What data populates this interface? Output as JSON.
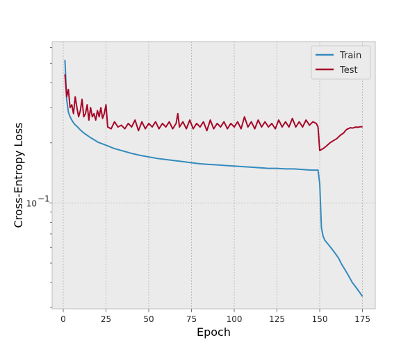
{
  "chart_data": {
    "type": "line",
    "title": "",
    "xlabel": "Epoch",
    "ylabel": "Cross-Entropy Loss",
    "yscale": "log",
    "xlim": [
      -6.5,
      182.5
    ],
    "ylim": [
      0.0295,
      0.642
    ],
    "xticks": [
      0,
      25,
      50,
      75,
      100,
      125,
      150,
      175
    ],
    "yticks": [
      {
        "value": 0.1,
        "label": "10",
        "exp": "−1"
      }
    ],
    "grid": true,
    "legend_position": "top-right",
    "background": "#ebebeb",
    "series": [
      {
        "name": "Train",
        "color": "#348abd",
        "points": [
          [
            1,
            0.52
          ],
          [
            2,
            0.33
          ],
          [
            3,
            0.285
          ],
          [
            4,
            0.27
          ],
          [
            5,
            0.26
          ],
          [
            6,
            0.252
          ],
          [
            7,
            0.246
          ],
          [
            8,
            0.242
          ],
          [
            9,
            0.237
          ],
          [
            10,
            0.232
          ],
          [
            11,
            0.228
          ],
          [
            12,
            0.224
          ],
          [
            13,
            0.221
          ],
          [
            14,
            0.218
          ],
          [
            15,
            0.215
          ],
          [
            16,
            0.212
          ],
          [
            17,
            0.21
          ],
          [
            18,
            0.207
          ],
          [
            19,
            0.205
          ],
          [
            20,
            0.202
          ],
          [
            22,
            0.199
          ],
          [
            24,
            0.196
          ],
          [
            26,
            0.193
          ],
          [
            28,
            0.19
          ],
          [
            30,
            0.187
          ],
          [
            33,
            0.184
          ],
          [
            36,
            0.181
          ],
          [
            40,
            0.177
          ],
          [
            45,
            0.173
          ],
          [
            50,
            0.17
          ],
          [
            55,
            0.167
          ],
          [
            60,
            0.165
          ],
          [
            65,
            0.163
          ],
          [
            70,
            0.161
          ],
          [
            75,
            0.159
          ],
          [
            80,
            0.157
          ],
          [
            85,
            0.156
          ],
          [
            90,
            0.155
          ],
          [
            95,
            0.154
          ],
          [
            100,
            0.153
          ],
          [
            105,
            0.152
          ],
          [
            110,
            0.151
          ],
          [
            115,
            0.15
          ],
          [
            120,
            0.149
          ],
          [
            125,
            0.149
          ],
          [
            130,
            0.148
          ],
          [
            135,
            0.148
          ],
          [
            140,
            0.147
          ],
          [
            145,
            0.146
          ],
          [
            149,
            0.146
          ],
          [
            150,
            0.125
          ],
          [
            151,
            0.075
          ],
          [
            152,
            0.068
          ],
          [
            153,
            0.065
          ],
          [
            155,
            0.062
          ],
          [
            157,
            0.059
          ],
          [
            159,
            0.056
          ],
          [
            161,
            0.053
          ],
          [
            163,
            0.049
          ],
          [
            165,
            0.046
          ],
          [
            167,
            0.043
          ],
          [
            169,
            0.04
          ],
          [
            171,
            0.038
          ],
          [
            173,
            0.036
          ],
          [
            175,
            0.034
          ]
        ]
      },
      {
        "name": "Test",
        "color": "#a60628",
        "points": [
          [
            1,
            0.44
          ],
          [
            2,
            0.34
          ],
          [
            3,
            0.37
          ],
          [
            4,
            0.3
          ],
          [
            5,
            0.31
          ],
          [
            6,
            0.28
          ],
          [
            7,
            0.34
          ],
          [
            8,
            0.3
          ],
          [
            9,
            0.27
          ],
          [
            10,
            0.29
          ],
          [
            11,
            0.33
          ],
          [
            12,
            0.27
          ],
          [
            13,
            0.28
          ],
          [
            14,
            0.31
          ],
          [
            15,
            0.26
          ],
          [
            16,
            0.3
          ],
          [
            17,
            0.27
          ],
          [
            18,
            0.28
          ],
          [
            19,
            0.26
          ],
          [
            20,
            0.29
          ],
          [
            21,
            0.27
          ],
          [
            22,
            0.3
          ],
          [
            23,
            0.265
          ],
          [
            24,
            0.28
          ],
          [
            25,
            0.31
          ],
          [
            26,
            0.24
          ],
          [
            28,
            0.235
          ],
          [
            30,
            0.255
          ],
          [
            32,
            0.24
          ],
          [
            34,
            0.245
          ],
          [
            36,
            0.235
          ],
          [
            38,
            0.25
          ],
          [
            40,
            0.24
          ],
          [
            42,
            0.26
          ],
          [
            44,
            0.23
          ],
          [
            46,
            0.255
          ],
          [
            48,
            0.235
          ],
          [
            50,
            0.25
          ],
          [
            52,
            0.24
          ],
          [
            54,
            0.255
          ],
          [
            56,
            0.235
          ],
          [
            58,
            0.25
          ],
          [
            60,
            0.24
          ],
          [
            62,
            0.255
          ],
          [
            64,
            0.235
          ],
          [
            66,
            0.25
          ],
          [
            67,
            0.28
          ],
          [
            68,
            0.24
          ],
          [
            70,
            0.255
          ],
          [
            72,
            0.235
          ],
          [
            74,
            0.26
          ],
          [
            76,
            0.235
          ],
          [
            78,
            0.25
          ],
          [
            80,
            0.24
          ],
          [
            82,
            0.255
          ],
          [
            84,
            0.23
          ],
          [
            86,
            0.26
          ],
          [
            88,
            0.235
          ],
          [
            90,
            0.25
          ],
          [
            92,
            0.24
          ],
          [
            94,
            0.255
          ],
          [
            96,
            0.235
          ],
          [
            98,
            0.25
          ],
          [
            100,
            0.24
          ],
          [
            102,
            0.255
          ],
          [
            104,
            0.235
          ],
          [
            106,
            0.27
          ],
          [
            108,
            0.24
          ],
          [
            110,
            0.255
          ],
          [
            112,
            0.235
          ],
          [
            114,
            0.26
          ],
          [
            116,
            0.24
          ],
          [
            118,
            0.255
          ],
          [
            120,
            0.24
          ],
          [
            122,
            0.25
          ],
          [
            124,
            0.235
          ],
          [
            126,
            0.26
          ],
          [
            128,
            0.24
          ],
          [
            130,
            0.255
          ],
          [
            132,
            0.24
          ],
          [
            134,
            0.265
          ],
          [
            136,
            0.24
          ],
          [
            138,
            0.255
          ],
          [
            140,
            0.24
          ],
          [
            142,
            0.26
          ],
          [
            144,
            0.245
          ],
          [
            146,
            0.255
          ],
          [
            148,
            0.25
          ],
          [
            149,
            0.24
          ],
          [
            150,
            0.183
          ],
          [
            152,
            0.187
          ],
          [
            154,
            0.193
          ],
          [
            156,
            0.2
          ],
          [
            158,
            0.205
          ],
          [
            160,
            0.21
          ],
          [
            162,
            0.218
          ],
          [
            164,
            0.224
          ],
          [
            165,
            0.23
          ],
          [
            166,
            0.234
          ],
          [
            167,
            0.236
          ],
          [
            168,
            0.238
          ],
          [
            169,
            0.237
          ],
          [
            170,
            0.238
          ],
          [
            171,
            0.24
          ],
          [
            172,
            0.239
          ],
          [
            173,
            0.24
          ],
          [
            174,
            0.241
          ],
          [
            175,
            0.24
          ]
        ]
      }
    ]
  }
}
